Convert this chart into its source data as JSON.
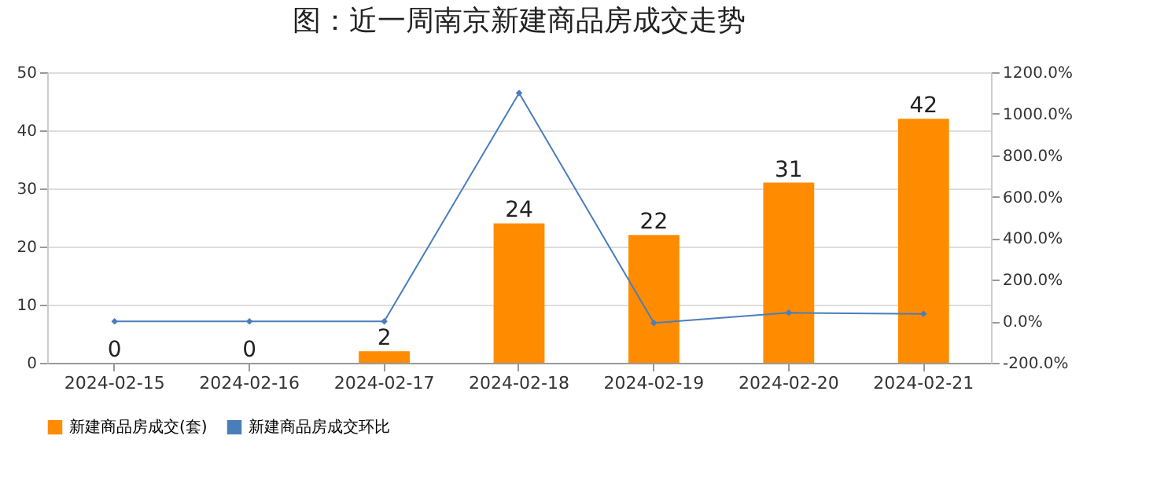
{
  "chart_data": {
    "type": "bar",
    "title": "图：近一周南京新建商品房成交走势",
    "categories": [
      "2024-02-15",
      "2024-02-16",
      "2024-02-17",
      "2024-02-18",
      "2024-02-19",
      "2024-02-20",
      "2024-02-21"
    ],
    "series": [
      {
        "name": "新建商品房成交(套)",
        "color": "#ff8c00",
        "values": [
          0,
          0,
          2,
          24,
          22,
          31,
          42
        ],
        "value_labels": [
          "0",
          "0",
          "2",
          "24",
          "22",
          "31",
          "42"
        ]
      },
      {
        "name": "新建商品房成交环比",
        "type": "line",
        "axis": "y2",
        "color": "#4a7ebb",
        "marker": "diamond",
        "values": [
          0,
          0,
          0,
          1100,
          -8,
          41,
          36
        ]
      }
    ],
    "ylim": [
      0,
      50
    ],
    "yticks": [
      0,
      10,
      20,
      30,
      40,
      50
    ],
    "y2lim": [
      -200,
      1200
    ],
    "y2ticks": [
      {
        "value": -200,
        "label": "-200.0%"
      },
      {
        "value": 0,
        "label": "0.0%"
      },
      {
        "value": 200,
        "label": "200.0%"
      },
      {
        "value": 400,
        "label": "400.0%"
      },
      {
        "value": 600,
        "label": "600.0%"
      },
      {
        "value": 800,
        "label": "800.0%"
      },
      {
        "value": 1000,
        "label": "1000.0%"
      },
      {
        "value": 1200,
        "label": "1200.0%"
      }
    ],
    "grid": "y",
    "legend": "bottom"
  }
}
